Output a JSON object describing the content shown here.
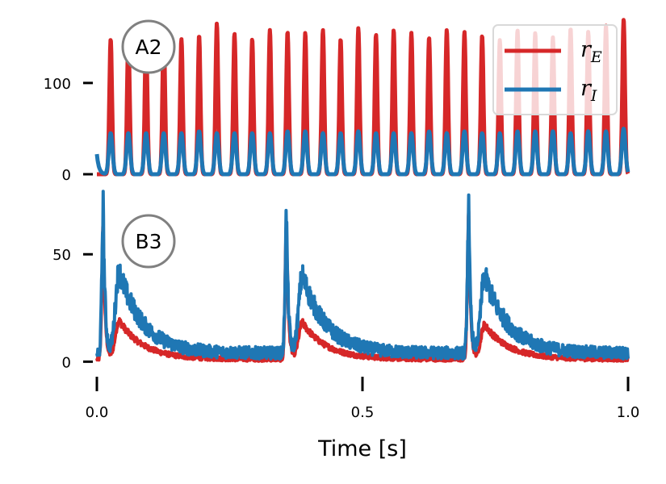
{
  "colors": {
    "rE": "#d62728",
    "rI": "#1f77b4",
    "badge_stroke": "#808080",
    "legend_edge": "#d9d9d9"
  },
  "chart_data": [
    {
      "panel": "A2",
      "type": "line",
      "xlim": [
        0,
        1
      ],
      "ylim": [
        0,
        175
      ],
      "yticks": [
        0,
        100
      ],
      "ytick_labels": [
        "0",
        "100"
      ],
      "xlabel": "",
      "legend": {
        "placement": "top-right",
        "entries": [
          {
            "base": "r",
            "sub": "E"
          },
          {
            "base": "r",
            "sub": "I"
          }
        ]
      },
      "period_s": 0.0333,
      "first_peak_s": 0.026,
      "series": [
        {
          "name": "r_E",
          "peaks": [
            148,
            152,
            150,
            156,
            148,
            152,
            165,
            154,
            148,
            158,
            156,
            155,
            158,
            148,
            160,
            153,
            158,
            155,
            150,
            158,
            156,
            152,
            147,
            158,
            155,
            150,
            160,
            156,
            163,
            170
          ]
        },
        {
          "name": "r_I",
          "initial": 22,
          "peaks": [
            45,
            45,
            45,
            45,
            45,
            47,
            45,
            45,
            45,
            45,
            47,
            47,
            45,
            45,
            47,
            45,
            45,
            45,
            47,
            45,
            47,
            45,
            45,
            47,
            47,
            47,
            45,
            47,
            47,
            50
          ]
        }
      ]
    },
    {
      "panel": "B3",
      "type": "line",
      "xlim": [
        0,
        1
      ],
      "ylim": [
        -4,
        70
      ],
      "yticks": [
        0,
        50
      ],
      "ytick_labels": [
        "0",
        "50"
      ],
      "xticks": [
        0.0,
        0.5,
        1.0
      ],
      "xtick_labels": [
        "0.0",
        "0.5",
        "1.0"
      ],
      "xlabel": "Time [s]",
      "series": [
        {
          "name": "r_E",
          "baseline": 1.2,
          "noise": 2,
          "bursts": [
            {
              "t": 0.012,
              "peak": 62,
              "rebound": 18
            },
            {
              "t": 0.357,
              "peak": 64,
              "rebound": 17
            },
            {
              "t": 0.7,
              "peak": 66,
              "rebound": 16
            }
          ]
        },
        {
          "name": "r_I",
          "baseline": 4,
          "noise": 5,
          "bursts": [
            {
              "t": 0.012,
              "peak": 68,
              "rebound": 38
            },
            {
              "t": 0.357,
              "peak": 64,
              "rebound": 36
            },
            {
              "t": 0.7,
              "peak": 66,
              "rebound": 36
            }
          ]
        }
      ]
    }
  ]
}
